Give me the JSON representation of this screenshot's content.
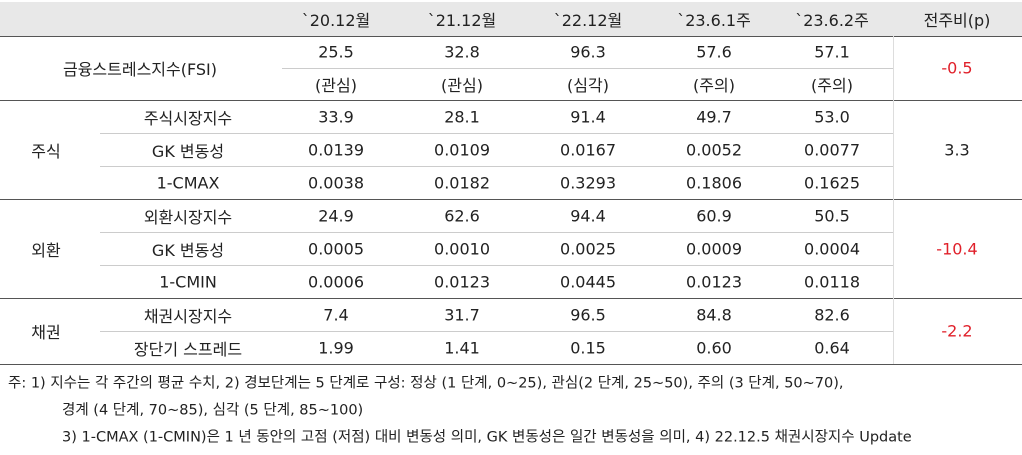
{
  "header": [
    "`20.12월",
    "`21.12월",
    "`22.12월",
    "`23.6.1주",
    "`23.6.2주",
    "전주비(p)"
  ],
  "fsi": {
    "label": "금융스트레스지수(FSI)",
    "values": [
      "25.5",
      "32.8",
      "96.3",
      "57.6",
      "57.1"
    ],
    "status": [
      "(관심)",
      "(관심)",
      "(심각)",
      "(주의)",
      "(주의)"
    ],
    "change": "-0.5"
  },
  "sections": [
    {
      "name": "주식",
      "change": "3.3",
      "rows": [
        {
          "label": "주식시장지수",
          "values": [
            "33.9",
            "28.1",
            "91.4",
            "49.7",
            "53.0"
          ]
        },
        {
          "label": "GK 변동성",
          "values": [
            "0.0139",
            "0.0109",
            "0.0167",
            "0.0052",
            "0.0077"
          ]
        },
        {
          "label": "1-CMAX",
          "values": [
            "0.0038",
            "0.0182",
            "0.3293",
            "0.1806",
            "0.1625"
          ]
        }
      ]
    },
    {
      "name": "외환",
      "change": "-10.4",
      "rows": [
        {
          "label": "외환시장지수",
          "values": [
            "24.9",
            "62.6",
            "94.4",
            "60.9",
            "50.5"
          ]
        },
        {
          "label": "GK 변동성",
          "values": [
            "0.0005",
            "0.0010",
            "0.0025",
            "0.0009",
            "0.0004"
          ]
        },
        {
          "label": "1-CMIN",
          "values": [
            "0.0006",
            "0.0123",
            "0.0445",
            "0.0123",
            "0.0118"
          ]
        }
      ]
    },
    {
      "name": "채권",
      "change": "-2.2",
      "rows": [
        {
          "label": "채권시장지수",
          "values": [
            "7.4",
            "31.7",
            "96.5",
            "84.8",
            "82.6"
          ]
        },
        {
          "label": "장단기 스프레드",
          "values": [
            "1.99",
            "1.41",
            "0.15",
            "0.60",
            "0.64"
          ]
        }
      ]
    }
  ],
  "notes": [
    "주: 1) 지수는 각 주간의 평균 수치, 2) 경보단계는 5 단계로 구성: 정상 (1 단계, 0~25), 관심(2 단계, 25~50), 주의 (3 단계, 50~70),",
    "경계 (4 단계, 70~85), 심각 (5 단계, 85~100)",
    "3) 1-CMAX (1-CMIN)은 1 년 동안의 고점 (저점) 대비 변동성 의미, GK 변동성은 일간 변동성을 의미, 4) 22.12.5 채권시장지수 Update"
  ]
}
